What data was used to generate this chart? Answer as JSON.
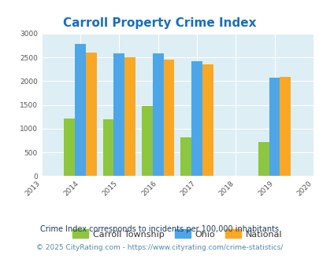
{
  "title": "Carroll Property Crime Index",
  "years": [
    2014,
    2015,
    2016,
    2017,
    2019
  ],
  "carroll": [
    1220,
    1190,
    1470,
    810,
    720
  ],
  "ohio": [
    2780,
    2580,
    2590,
    2415,
    2065
  ],
  "national": [
    2600,
    2500,
    2460,
    2360,
    2090
  ],
  "carroll_color": "#8dc63f",
  "ohio_color": "#4da6e8",
  "national_color": "#f9a825",
  "bg_color": "#ddeef4",
  "xlim": [
    2013,
    2020
  ],
  "ylim": [
    0,
    3000
  ],
  "yticks": [
    0,
    500,
    1000,
    1500,
    2000,
    2500,
    3000
  ],
  "xticks": [
    2013,
    2014,
    2015,
    2016,
    2017,
    2018,
    2019,
    2020
  ],
  "legend_labels": [
    "Carroll Township",
    "Ohio",
    "National"
  ],
  "footnote1": "Crime Index corresponds to incidents per 100,000 inhabitants",
  "footnote2": "© 2025 CityRating.com - https://www.cityrating.com/crime-statistics/",
  "title_color": "#1a6ebd",
  "footnote1_color": "#1a3a5c",
  "footnote2_color": "#5588aa",
  "bar_width": 0.28
}
